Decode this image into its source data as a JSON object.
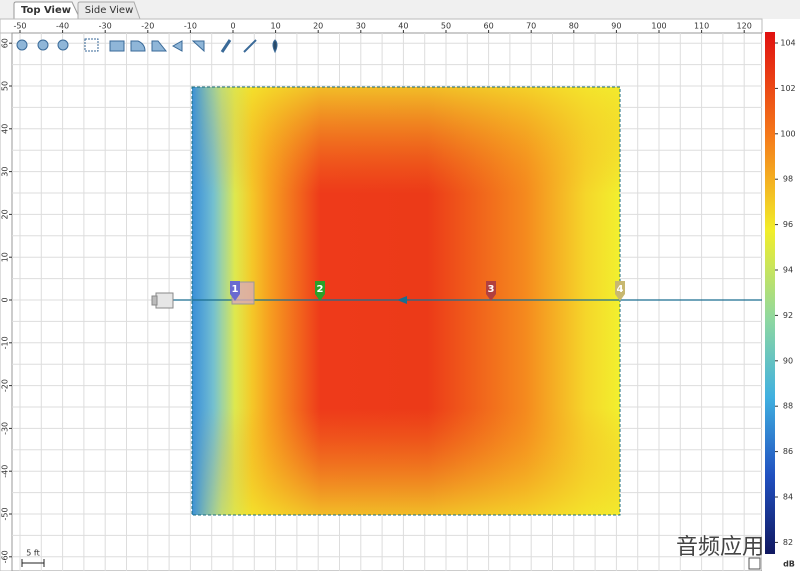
{
  "tabs": [
    "Top View",
    "Side View"
  ],
  "ruler_top": [
    -50,
    -40,
    -30,
    -20,
    -10,
    0,
    10,
    20,
    30,
    40,
    50,
    60,
    70,
    80,
    90,
    100,
    110,
    120
  ],
  "ruler_left": [
    60,
    50,
    40,
    30,
    20,
    10,
    0,
    -10,
    -20,
    -30,
    -40,
    -50,
    -60
  ],
  "colorbar": {
    "labels": [
      104,
      102,
      100,
      98,
      96,
      94,
      92,
      90,
      88,
      86,
      84,
      82
    ],
    "unit": "dB"
  },
  "scale_label": "5 ft",
  "markers": [
    "1",
    "2",
    "3",
    "4"
  ],
  "watermark": "音频应用"
}
